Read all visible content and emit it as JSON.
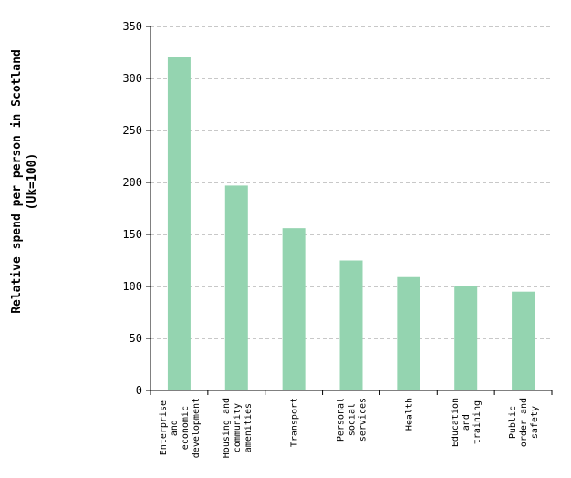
{
  "chart_data": {
    "type": "bar",
    "title": "",
    "xlabel": "",
    "ylabel": [
      "Relative spend per person in Scotland",
      "(Uk=100)"
    ],
    "ylim": [
      0,
      350
    ],
    "yticks": [
      0,
      50,
      100,
      150,
      200,
      250,
      300,
      350
    ],
    "grid": true,
    "legend": "none",
    "bar_color": "#94d4b0",
    "categories": [
      [
        "Enterprise",
        "and",
        "economic",
        "development"
      ],
      [
        "Housing and",
        "community",
        "amenities"
      ],
      [
        "Transport"
      ],
      [
        "Personal",
        "social",
        "services"
      ],
      [
        "Health"
      ],
      [
        "Education",
        "and",
        "training"
      ],
      [
        "Public",
        "order and",
        "safety"
      ]
    ],
    "values": [
      321,
      197,
      156,
      125,
      109,
      100,
      95
    ]
  }
}
